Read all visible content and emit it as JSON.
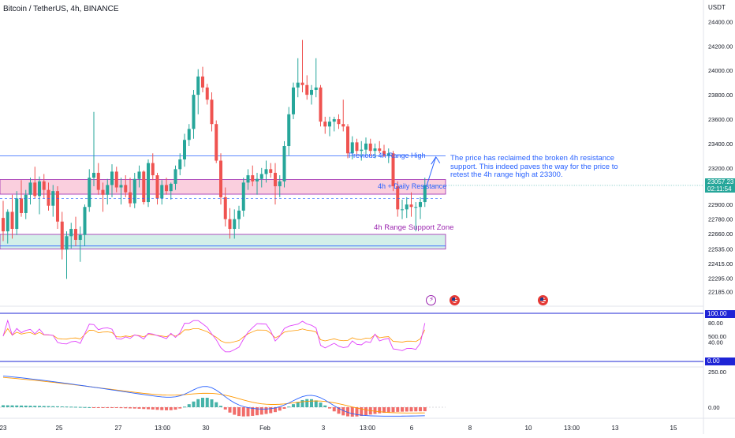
{
  "header": {
    "symbol_title": "Bitcoin / TetherUS, 4h, BINANCE",
    "currency": "USDT"
  },
  "price_scale": {
    "labels": [
      "24400.00",
      "24200.00",
      "24000.00",
      "23800.00",
      "23600.00",
      "23400.00",
      "23200.00",
      "22900.00",
      "22780.00",
      "22660.00",
      "22535.00",
      "22415.00",
      "22295.00",
      "22185.00"
    ],
    "last_price": "23057.23",
    "countdown": "02:11:54"
  },
  "annotations": {
    "note": "The price has reclaimed the broken 4h resistance support. This indeed paves the way for the price to retest the 4h range high at 23300.",
    "prev_high": "Previous 4h Range High",
    "resistance": "4h + Daily Resistance",
    "support": "4h Range Support Zone"
  },
  "rsi_pane": {
    "upper_tag": "100.00",
    "lower_tag": "0.00",
    "labels": [
      "80.00",
      "40.00"
    ]
  },
  "macd_pane": {
    "labels": [
      "500.00",
      "250.00",
      "0.00"
    ]
  },
  "time_axis": {
    "labels": [
      "23",
      "25",
      "27",
      "13:00",
      "30",
      "Feb",
      "3",
      "13:00",
      "6",
      "8",
      "10",
      "13:00",
      "13",
      "15"
    ]
  },
  "colors": {
    "up": "#26a69a",
    "down": "#ef5350",
    "resistance_zone": "#f8bbd0",
    "support_zone": "#c8ebe3",
    "range_line": "#2962ff",
    "rsi_line": "#e040fb",
    "rsi_signal": "#ff9800",
    "rsi_band": "#1e24d6",
    "macd_line": "#2962ff",
    "macd_signal": "#ff9800"
  },
  "chart_data": {
    "type": "candlestick",
    "timeframe": "4h",
    "y_range": [
      22150,
      24500
    ],
    "candles": [
      [
        22790,
        22930,
        22600,
        22680
      ],
      [
        22680,
        22860,
        22580,
        22840
      ],
      [
        22840,
        22980,
        22620,
        22700
      ],
      [
        22700,
        23010,
        22650,
        22950
      ],
      [
        22950,
        23100,
        22800,
        22830
      ],
      [
        22830,
        23020,
        22780,
        22980
      ],
      [
        22980,
        23120,
        22900,
        23080
      ],
      [
        23080,
        23210,
        22950,
        22970
      ],
      [
        22970,
        23130,
        22820,
        23090
      ],
      [
        23090,
        23150,
        22950,
        23020
      ],
      [
        23020,
        23080,
        22850,
        22890
      ],
      [
        22890,
        23060,
        22800,
        23010
      ],
      [
        23010,
        23050,
        22700,
        22760
      ],
      [
        22760,
        22840,
        22450,
        22530
      ],
      [
        22530,
        22680,
        22290,
        22640
      ],
      [
        22640,
        22750,
        22540,
        22700
      ],
      [
        22700,
        22800,
        22560,
        22610
      ],
      [
        22610,
        22720,
        22430,
        22650
      ],
      [
        22650,
        22900,
        22560,
        22880
      ],
      [
        22880,
        23190,
        22840,
        23120
      ],
      [
        23120,
        23660,
        23050,
        23160
      ],
      [
        23160,
        23240,
        22980,
        23020
      ],
      [
        23020,
        23080,
        22840,
        22980
      ],
      [
        22980,
        23110,
        22900,
        23060
      ],
      [
        23060,
        23230,
        22960,
        23170
      ],
      [
        23170,
        23210,
        23000,
        23040
      ],
      [
        23040,
        23120,
        22900,
        23060
      ],
      [
        23060,
        23140,
        22960,
        23000
      ],
      [
        23000,
        23120,
        22880,
        22910
      ],
      [
        22910,
        23160,
        22870,
        23110
      ],
      [
        23110,
        23220,
        23040,
        23170
      ],
      [
        23170,
        23180,
        22900,
        22920
      ],
      [
        22920,
        23270,
        22880,
        23240
      ],
      [
        23240,
        23320,
        23100,
        23140
      ],
      [
        23140,
        23160,
        22900,
        22950
      ],
      [
        22950,
        23100,
        22900,
        23060
      ],
      [
        23060,
        23120,
        22980,
        23010
      ],
      [
        23010,
        23080,
        22940,
        23070
      ],
      [
        23070,
        23220,
        23020,
        23190
      ],
      [
        23190,
        23320,
        23140,
        23270
      ],
      [
        23270,
        23480,
        23210,
        23430
      ],
      [
        23430,
        23560,
        23380,
        23520
      ],
      [
        23520,
        23840,
        23440,
        23800
      ],
      [
        23800,
        24010,
        23640,
        23950
      ],
      [
        23950,
        24030,
        23820,
        23860
      ],
      [
        23860,
        23890,
        23720,
        23760
      ],
      [
        23760,
        23820,
        23500,
        23560
      ],
      [
        23560,
        23590,
        23240,
        23260
      ],
      [
        23260,
        23320,
        22900,
        22960
      ],
      [
        22960,
        23040,
        22720,
        22780
      ],
      [
        22780,
        22870,
        22620,
        22700
      ],
      [
        22700,
        22860,
        22620,
        22780
      ],
      [
        22780,
        22890,
        22700,
        22850
      ],
      [
        22850,
        23120,
        22800,
        23080
      ],
      [
        23080,
        23190,
        23020,
        23140
      ],
      [
        23140,
        23220,
        23050,
        23090
      ],
      [
        23090,
        23160,
        22980,
        23110
      ],
      [
        23110,
        23200,
        23040,
        23150
      ],
      [
        23150,
        23260,
        23080,
        23190
      ],
      [
        23190,
        23240,
        23120,
        23160
      ],
      [
        23160,
        23240,
        22900,
        23050
      ],
      [
        23050,
        23140,
        22960,
        23090
      ],
      [
        23090,
        23420,
        23040,
        23380
      ],
      [
        23380,
        23700,
        23300,
        23640
      ],
      [
        23640,
        23900,
        23600,
        23860
      ],
      [
        23860,
        24100,
        23780,
        23900
      ],
      [
        23900,
        24250,
        23820,
        23880
      ],
      [
        23880,
        23960,
        23760,
        23800
      ],
      [
        23800,
        23880,
        23720,
        23840
      ],
      [
        23840,
        24100,
        23780,
        23860
      ],
      [
        23860,
        23880,
        23540,
        23580
      ],
      [
        23580,
        23620,
        23480,
        23540
      ],
      [
        23540,
        23620,
        23460,
        23580
      ],
      [
        23580,
        23620,
        23500,
        23600
      ],
      [
        23600,
        23640,
        23520,
        23560
      ],
      [
        23560,
        23760,
        23500,
        23540
      ],
      [
        23540,
        23560,
        23280,
        23320
      ],
      [
        23320,
        23460,
        23270,
        23410
      ],
      [
        23410,
        23440,
        23300,
        23340
      ],
      [
        23340,
        23420,
        23260,
        23350
      ],
      [
        23350,
        23450,
        23310,
        23400
      ],
      [
        23400,
        23440,
        23300,
        23340
      ],
      [
        23340,
        23400,
        23280,
        23360
      ],
      [
        23360,
        23420,
        23320,
        23340
      ],
      [
        23340,
        23390,
        23290,
        23300
      ],
      [
        23300,
        23360,
        23240,
        23320
      ],
      [
        23320,
        23340,
        23010,
        23050
      ],
      [
        23050,
        23090,
        22800,
        22860
      ],
      [
        22860,
        22940,
        22780,
        22860
      ],
      [
        22860,
        22960,
        22790,
        22900
      ],
      [
        22900,
        23000,
        22800,
        22880
      ],
      [
        22880,
        22920,
        22680,
        22880
      ],
      [
        22880,
        22960,
        22780,
        22920
      ],
      [
        22920,
        23120,
        22880,
        23060
      ]
    ]
  }
}
